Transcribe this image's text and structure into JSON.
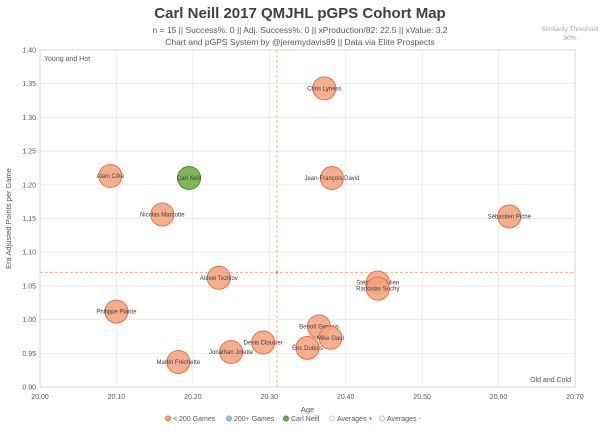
{
  "chart_data": {
    "type": "scatter",
    "title": "Carl Neill 2017 QMJHL pGPS Cohort Map",
    "subtitle_line1": "n = 15 || Success%: 0 || Adj. Success%: 0 || xProduction/82: 22.5 || xValue: 3.2",
    "subtitle_line2": "Chart and pGPS System by @jeremydavis89 || Data via Elite Prospects",
    "similarity_label_line1": "Similarity Threshold",
    "similarity_label_line2": "90%",
    "xlabel": "Age",
    "ylabel": "Era Adjusted Points per Game",
    "xlim": [
      20.0,
      20.7
    ],
    "ylim": [
      0.9,
      1.4
    ],
    "x_ticks": [
      "20.00",
      "20.10",
      "20.20",
      "20.30",
      "20.40",
      "20.50",
      "20.60",
      "20.70"
    ],
    "y_ticks": [
      "0.90",
      "0.95",
      "1.00",
      "1.05",
      "1.10",
      "1.15",
      "1.20",
      "1.25",
      "1.30",
      "1.35",
      "1.40"
    ],
    "grid": true,
    "averages": {
      "x": 20.31,
      "y": 1.07
    },
    "quadrant_labels": {
      "top_left": "Young and Hot",
      "bottom_right": "Old and Cold"
    },
    "colors": {
      "under200": "#f4a582",
      "under200_edge": "#e8714a",
      "over200": "#9dc3e6",
      "target": "#70ad47",
      "target_edge": "#4e8a2c",
      "avg_plus": "#bdd7ee",
      "avg_minus": "#f4b183"
    },
    "points": [
      {
        "name": "Carl Neill",
        "x": 20.195,
        "y": 1.21,
        "group": "target"
      },
      {
        "name": "Chris Lyness",
        "x": 20.372,
        "y": 1.343,
        "group": "under200"
      },
      {
        "name": "Alain Côté",
        "x": 20.092,
        "y": 1.213,
        "group": "under200"
      },
      {
        "name": "Jean-François David",
        "x": 20.382,
        "y": 1.21,
        "group": "under200"
      },
      {
        "name": "Nicolas Marcotte",
        "x": 20.16,
        "y": 1.156,
        "group": "under200"
      },
      {
        "name": "Sébastien Piché",
        "x": 20.614,
        "y": 1.153,
        "group": "under200"
      },
      {
        "name": "Alexei Tezikov",
        "x": 20.234,
        "y": 1.062,
        "group": "under200"
      },
      {
        "name": "Stéphane Julien",
        "x": 20.442,
        "y": 1.055,
        "group": "under200"
      },
      {
        "name": "Radoslav Suchý",
        "x": 20.442,
        "y": 1.046,
        "group": "under200"
      },
      {
        "name": "Philippe Plante",
        "x": 20.1,
        "y": 1.012,
        "group": "under200"
      },
      {
        "name": "Benoît Gervais",
        "x": 20.365,
        "y": 0.99,
        "group": "under200"
      },
      {
        "name": "Mike Gaul",
        "x": 20.38,
        "y": 0.973,
        "group": "under200"
      },
      {
        "name": "Denis Clousier",
        "x": 20.292,
        "y": 0.966,
        "group": "under200"
      },
      {
        "name": "Éric Dubois",
        "x": 20.35,
        "y": 0.958,
        "group": "under200"
      },
      {
        "name": "Jonathan Jolette",
        "x": 20.25,
        "y": 0.952,
        "group": "under200"
      },
      {
        "name": "Martin Fréchette",
        "x": 20.181,
        "y": 0.937,
        "group": "under200"
      }
    ],
    "legend": [
      {
        "label": "< 200 Games",
        "key": "under200"
      },
      {
        "label": "200+ Games",
        "key": "over200"
      },
      {
        "label": "Carl Neill",
        "key": "target"
      },
      {
        "label": "Averages +",
        "key": "avg_plus"
      },
      {
        "label": "Averages -",
        "key": "avg_minus"
      }
    ]
  }
}
